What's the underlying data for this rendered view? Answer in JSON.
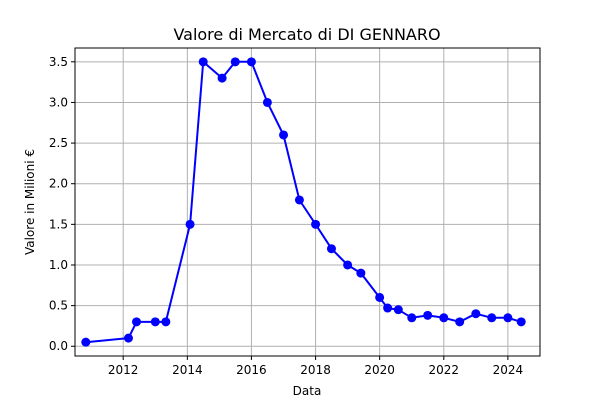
{
  "chart_data": {
    "type": "line",
    "title": "Valore di Mercato di DI GENNARO",
    "xlabel": "Data",
    "ylabel": "Valore in Milioni €",
    "xlim": [
      "2010-07-01",
      "2025-01-01"
    ],
    "ylim": [
      -0.12,
      3.67
    ],
    "x_ticks": [
      "2012",
      "2014",
      "2016",
      "2018",
      "2020",
      "2022",
      "2024"
    ],
    "y_ticks": [
      "0.0",
      "0.5",
      "1.0",
      "1.5",
      "2.0",
      "2.5",
      "3.0",
      "3.5"
    ],
    "grid": true,
    "series": [
      {
        "color": "#0000ff",
        "marker": "circle",
        "points": [
          {
            "x": "2010-11-01",
            "y": 0.05
          },
          {
            "x": "2012-03-01",
            "y": 0.1
          },
          {
            "x": "2012-06-01",
            "y": 0.3
          },
          {
            "x": "2013-01-01",
            "y": 0.3
          },
          {
            "x": "2013-05-01",
            "y": 0.3
          },
          {
            "x": "2014-02-01",
            "y": 1.5
          },
          {
            "x": "2014-07-01",
            "y": 3.5
          },
          {
            "x": "2015-02-01",
            "y": 3.3
          },
          {
            "x": "2015-07-01",
            "y": 3.5
          },
          {
            "x": "2016-01-01",
            "y": 3.5
          },
          {
            "x": "2016-07-01",
            "y": 3.0
          },
          {
            "x": "2017-01-01",
            "y": 2.6
          },
          {
            "x": "2017-07-01",
            "y": 1.8
          },
          {
            "x": "2018-01-01",
            "y": 1.5
          },
          {
            "x": "2018-07-01",
            "y": 1.2
          },
          {
            "x": "2019-01-01",
            "y": 1.0
          },
          {
            "x": "2019-06-01",
            "y": 0.9
          },
          {
            "x": "2020-01-01",
            "y": 0.6
          },
          {
            "x": "2020-04-01",
            "y": 0.47
          },
          {
            "x": "2020-08-01",
            "y": 0.45
          },
          {
            "x": "2021-01-01",
            "y": 0.35
          },
          {
            "x": "2021-07-01",
            "y": 0.38
          },
          {
            "x": "2022-01-01",
            "y": 0.35
          },
          {
            "x": "2022-07-01",
            "y": 0.3
          },
          {
            "x": "2023-01-01",
            "y": 0.4
          },
          {
            "x": "2023-07-01",
            "y": 0.35
          },
          {
            "x": "2024-01-01",
            "y": 0.35
          },
          {
            "x": "2024-06-01",
            "y": 0.3
          }
        ]
      }
    ]
  }
}
